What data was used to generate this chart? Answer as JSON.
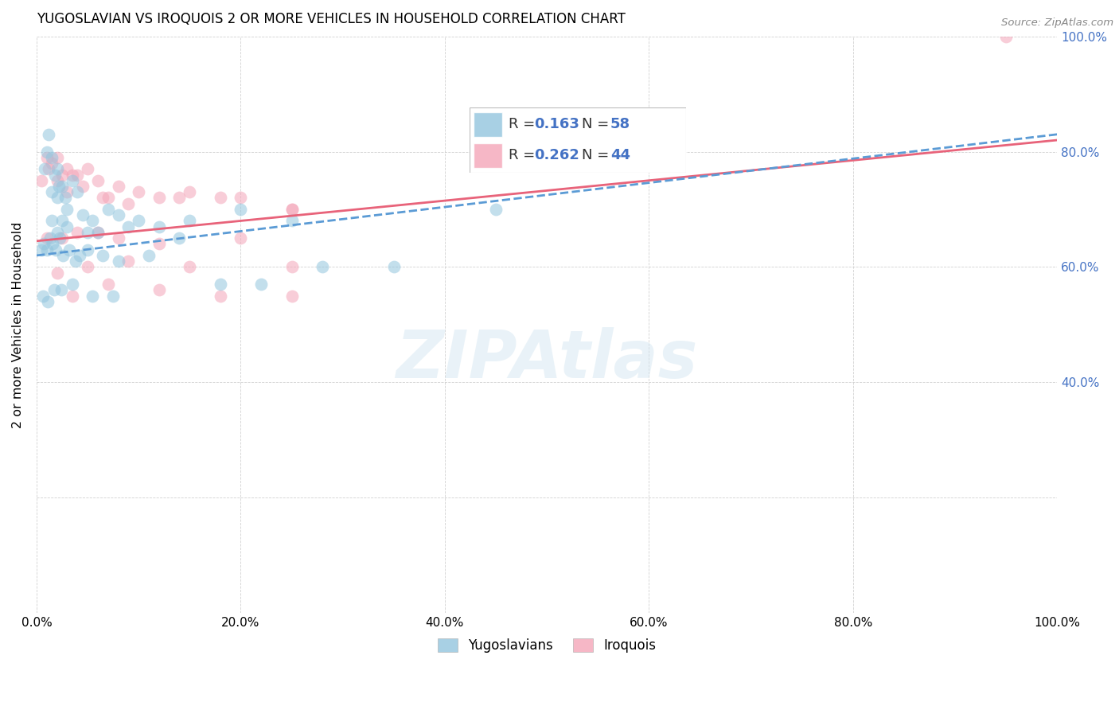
{
  "title": "YUGOSLAVIAN VS IROQUOIS 2 OR MORE VEHICLES IN HOUSEHOLD CORRELATION CHART",
  "source": "Source: ZipAtlas.com",
  "ylabel": "2 or more Vehicles in Household",
  "watermark": "ZIPAtlas",
  "blue_color": "#92c5de",
  "pink_color": "#f4a5b8",
  "blue_line_color": "#5b9bd5",
  "pink_line_color": "#e8637a",
  "right_tick_color": "#4472c4",
  "legend_r1": "R = ",
  "legend_v1": "0.163",
  "legend_n1": "N = ",
  "legend_nv1": "58",
  "legend_r2": "R = ",
  "legend_v2": "0.262",
  "legend_n2": "N = ",
  "legend_nv2": "44",
  "blue_x": [
    1.5,
    2.0,
    2.5,
    1.0,
    1.2,
    1.8,
    2.2,
    0.8,
    1.5,
    2.0,
    2.8,
    3.5,
    4.0,
    3.0,
    2.5,
    1.5,
    2.0,
    3.0,
    4.5,
    5.0,
    5.5,
    6.0,
    7.0,
    8.0,
    9.0,
    10.0,
    12.0,
    15.0,
    20.0,
    25.0,
    0.5,
    0.7,
    1.0,
    1.3,
    1.6,
    1.9,
    2.3,
    2.6,
    3.2,
    3.8,
    4.2,
    5.0,
    6.5,
    8.0,
    11.0,
    14.0,
    18.0,
    22.0,
    28.0,
    35.0,
    0.6,
    1.1,
    1.7,
    2.4,
    3.5,
    5.5,
    7.5,
    45.0
  ],
  "blue_y": [
    79.0,
    77.0,
    74.0,
    80.0,
    83.0,
    76.0,
    74.0,
    77.0,
    73.0,
    72.0,
    72.0,
    75.0,
    73.0,
    70.0,
    68.0,
    68.0,
    66.0,
    67.0,
    69.0,
    66.0,
    68.0,
    66.0,
    70.0,
    69.0,
    67.0,
    68.0,
    67.0,
    68.0,
    70.0,
    68.0,
    63.0,
    64.0,
    63.0,
    65.0,
    64.0,
    63.0,
    65.0,
    62.0,
    63.0,
    61.0,
    62.0,
    63.0,
    62.0,
    61.0,
    62.0,
    65.0,
    57.0,
    57.0,
    60.0,
    60.0,
    55.0,
    54.0,
    56.0,
    56.0,
    57.0,
    55.0,
    55.0,
    70.0
  ],
  "pink_x": [
    0.5,
    1.0,
    1.5,
    2.0,
    2.5,
    3.0,
    3.5,
    4.0,
    5.0,
    6.0,
    7.0,
    8.0,
    10.0,
    12.0,
    15.0,
    20.0,
    25.0,
    1.2,
    2.0,
    3.0,
    4.5,
    6.5,
    9.0,
    14.0,
    18.0,
    25.0,
    1.0,
    2.5,
    4.0,
    6.0,
    8.0,
    12.0,
    20.0,
    2.0,
    5.0,
    9.0,
    15.0,
    25.0,
    3.5,
    7.0,
    12.0,
    18.0,
    25.0,
    95.0
  ],
  "pink_y": [
    75.0,
    79.0,
    78.0,
    79.0,
    76.0,
    77.0,
    76.0,
    76.0,
    77.0,
    75.0,
    72.0,
    74.0,
    73.0,
    72.0,
    73.0,
    72.0,
    70.0,
    77.0,
    75.0,
    73.0,
    74.0,
    72.0,
    71.0,
    72.0,
    72.0,
    70.0,
    65.0,
    65.0,
    66.0,
    66.0,
    65.0,
    64.0,
    65.0,
    59.0,
    60.0,
    61.0,
    60.0,
    60.0,
    55.0,
    57.0,
    56.0,
    55.0,
    55.0,
    100.0
  ],
  "xlim": [
    0,
    100
  ],
  "ylim": [
    0,
    100
  ],
  "xtick_vals": [
    0,
    20,
    40,
    60,
    80,
    100
  ],
  "ytick_right_vals": [
    40,
    60,
    80,
    100
  ]
}
